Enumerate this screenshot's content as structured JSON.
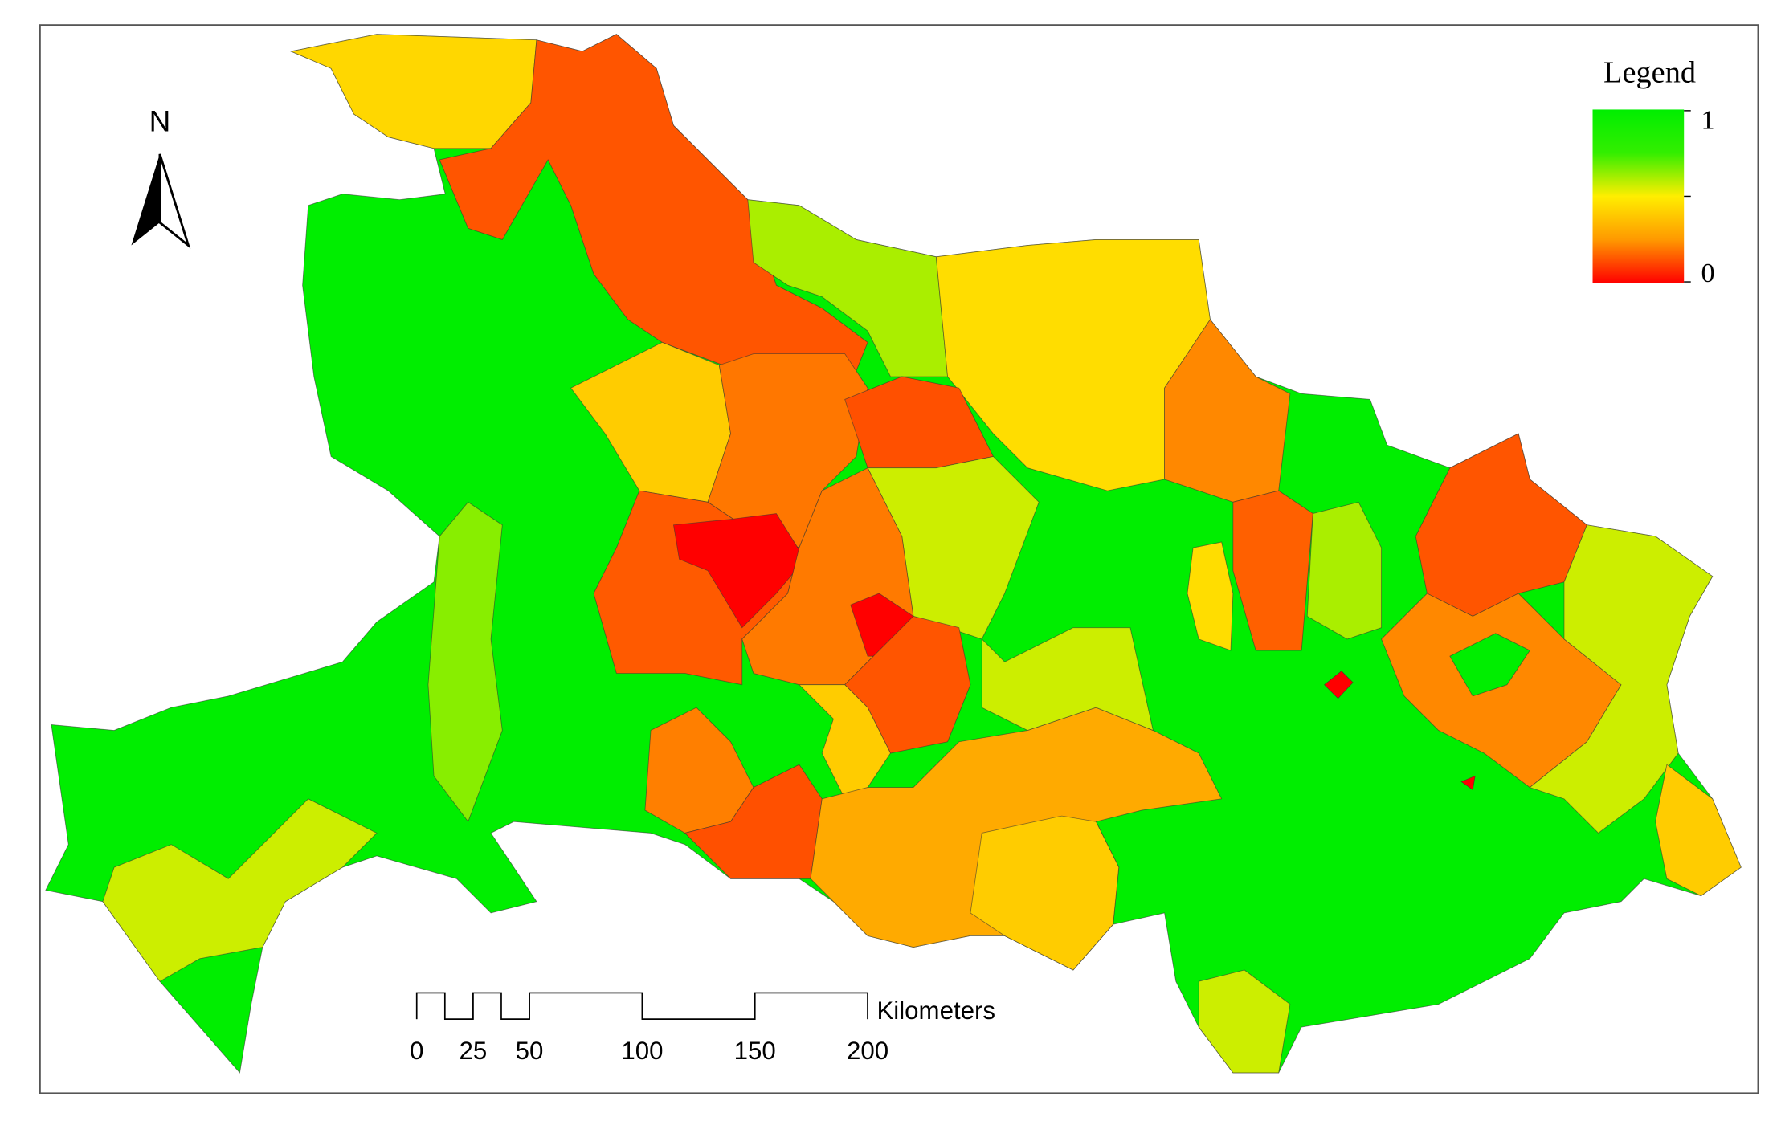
{
  "legend": {
    "title": "Legend",
    "ticks": [
      1,
      0
    ]
  },
  "scale_bar": {
    "unit": "Kilometers",
    "ticks": [
      0,
      25,
      50,
      100,
      150,
      200
    ]
  },
  "north_arrow": {
    "label": "N"
  }
}
